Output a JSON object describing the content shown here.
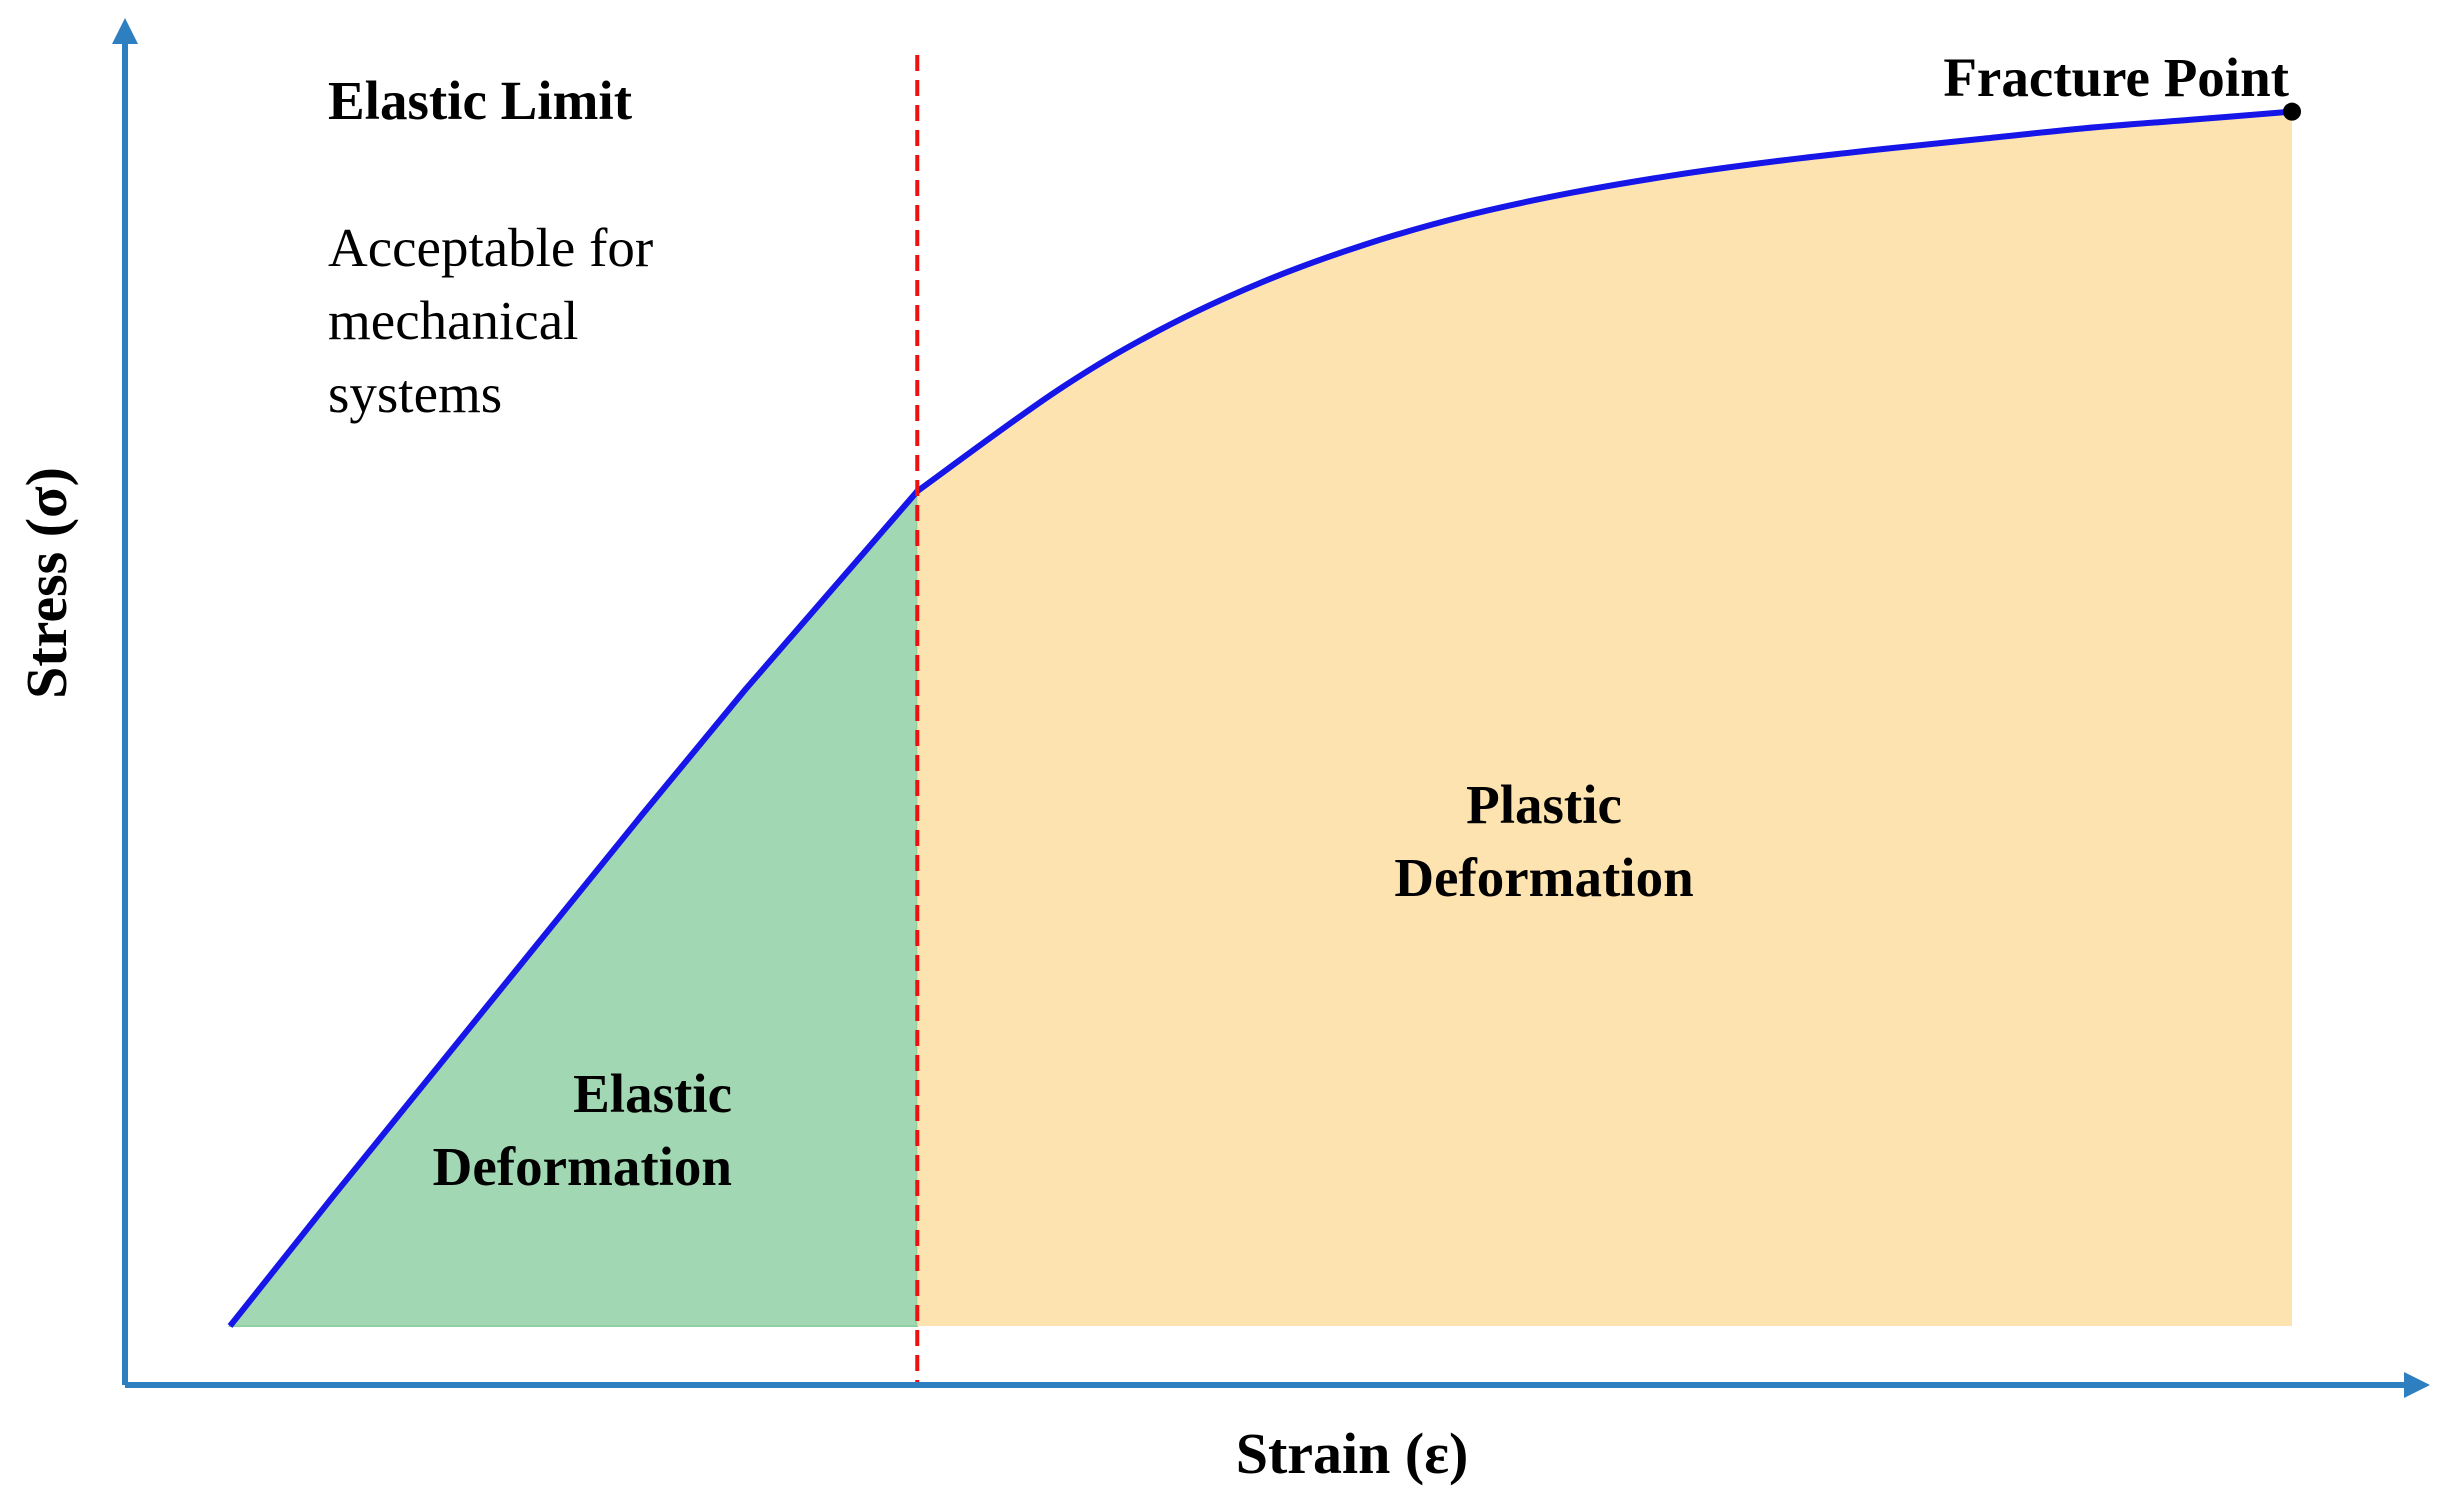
{
  "chart_data": {
    "type": "line",
    "title": "",
    "xlabel": "Strain (ε)",
    "ylabel": "Stress (σ)",
    "xlim": [
      0,
      1
    ],
    "ylim": [
      0,
      1
    ],
    "grid": false,
    "ticks": false,
    "series": [
      {
        "x": [
          0.0,
          0.05,
          0.1,
          0.15,
          0.2,
          0.25,
          0.3333,
          0.4,
          0.45,
          0.5,
          0.55,
          0.6,
          0.65,
          0.7,
          0.75,
          0.8,
          0.85,
          0.9,
          0.95,
          1.0
        ],
        "y": [
          0.0,
          0.11,
          0.218,
          0.326,
          0.434,
          0.54,
          0.708,
          0.792,
          0.844,
          0.885,
          0.917,
          0.942,
          0.961,
          0.976,
          0.988,
          0.998,
          1.007,
          1.016,
          1.023,
          1.03
        ]
      }
    ],
    "elastic_limit_x": 0.3333,
    "fracture_point": {
      "x": 1.0,
      "y": 1.03
    },
    "annotations": {
      "elastic_limit": "Elastic Limit",
      "acceptable": [
        "Acceptable for",
        "mechanical",
        "systems"
      ],
      "fracture_point": "Fracture Point",
      "plastic_region": [
        "Plastic",
        "Deformation"
      ],
      "elastic_region": [
        "Elastic",
        "Deformation"
      ]
    },
    "colors": {
      "axis": "#2e7fc0",
      "curve": "#1616e8",
      "elastic_limit_line": "#ee1111",
      "elastic_fill": "#a1d8b3",
      "plastic_fill": "#fde3b0",
      "fracture_marker": "#000000"
    }
  }
}
